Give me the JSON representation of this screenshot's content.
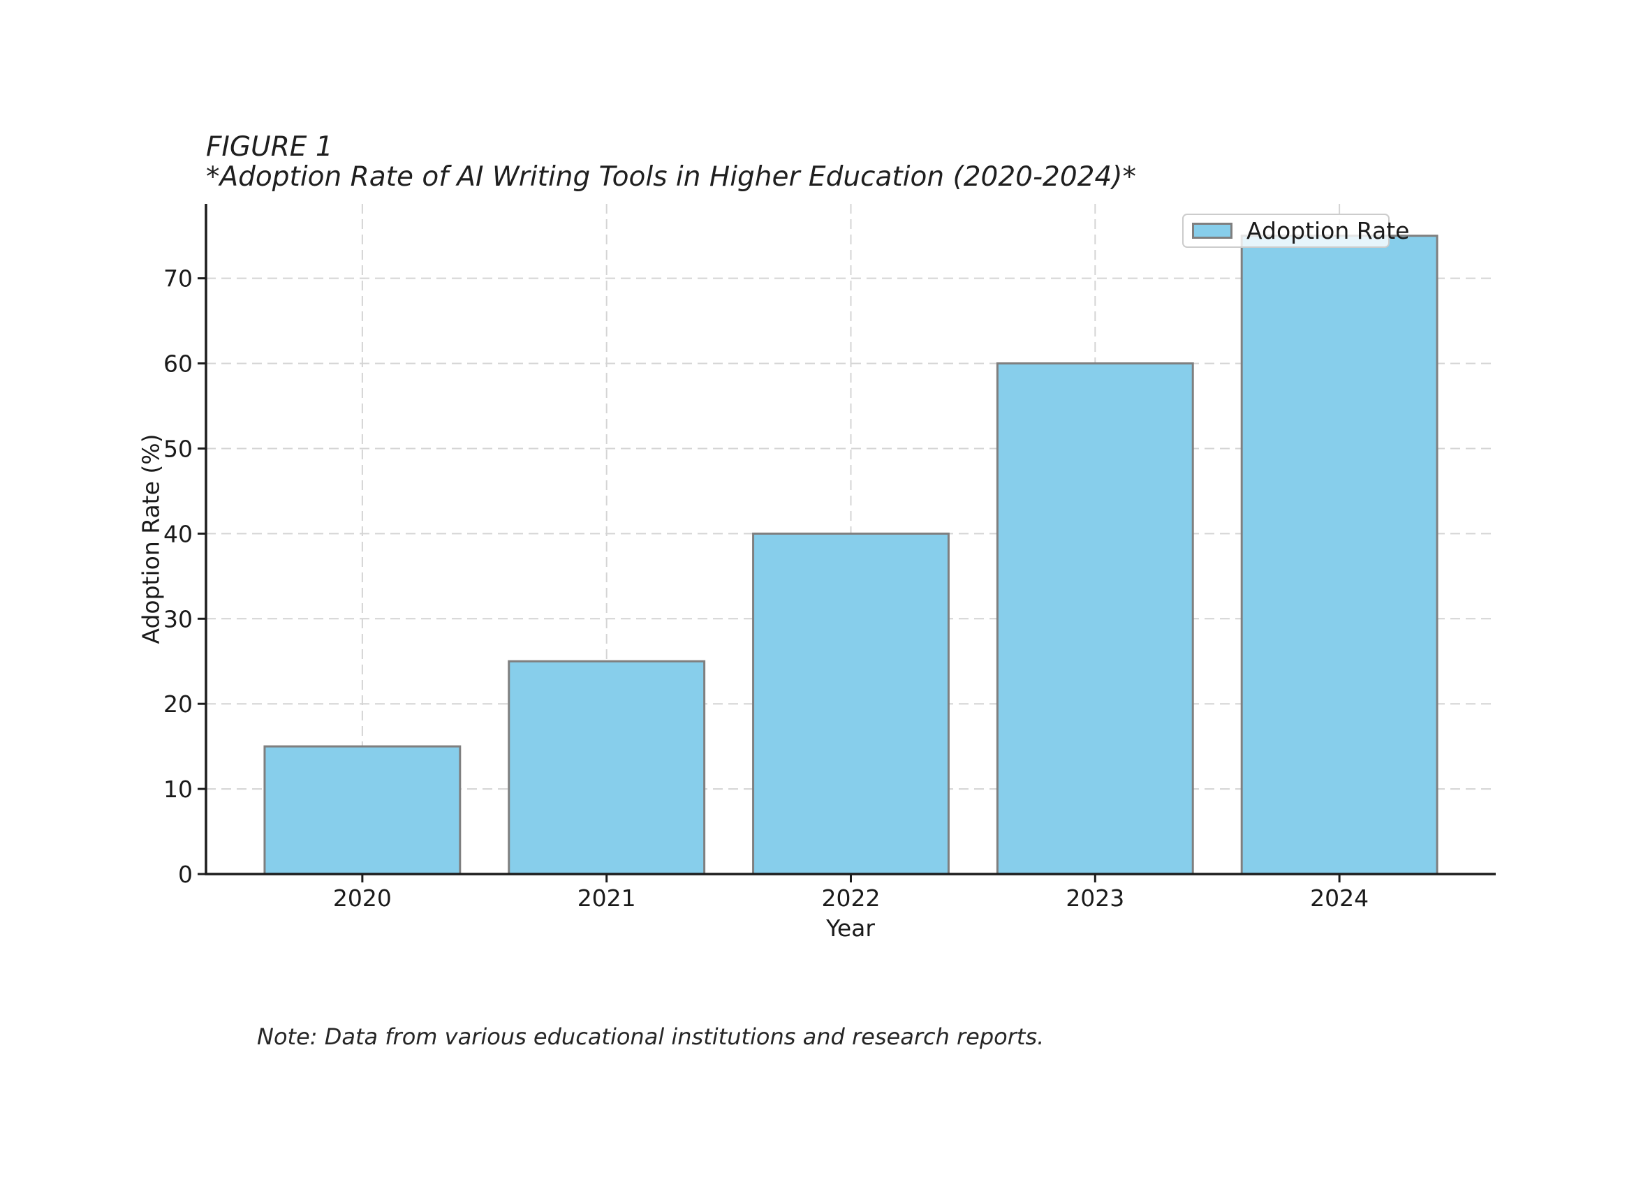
{
  "figure": {
    "label": "FIGURE 1",
    "subtitle": "*Adoption Rate of AI Writing Tools in Higher Education (2020-2024)*"
  },
  "chart_data": {
    "type": "bar",
    "title": "FIGURE 1\n*Adoption Rate of AI Writing Tools in Higher Education (2020-2024)*",
    "categories": [
      "2020",
      "2021",
      "2022",
      "2023",
      "2024"
    ],
    "series": [
      {
        "name": "Adoption Rate",
        "values": [
          15,
          25,
          40,
          60,
          75
        ]
      }
    ],
    "xlabel": "Year",
    "ylabel": "Adoption Rate (%)",
    "ylim": [
      0,
      78.75
    ],
    "yticks": [
      0,
      10,
      20,
      30,
      40,
      50,
      60,
      70
    ],
    "grid": true,
    "grid_style": "dashed",
    "legend": {
      "position": "upper right",
      "entries": [
        "Adoption Rate"
      ]
    },
    "colors": {
      "bar_fill": "#87CEEB",
      "bar_edge": "#7f7f7f",
      "grid": "#d4d4d4",
      "axis": "#1c1c1c",
      "text": "#1a1a1a",
      "legend_border": "#cccccc"
    }
  },
  "note": {
    "text": "Note: Data from various educational institutions and research reports."
  }
}
